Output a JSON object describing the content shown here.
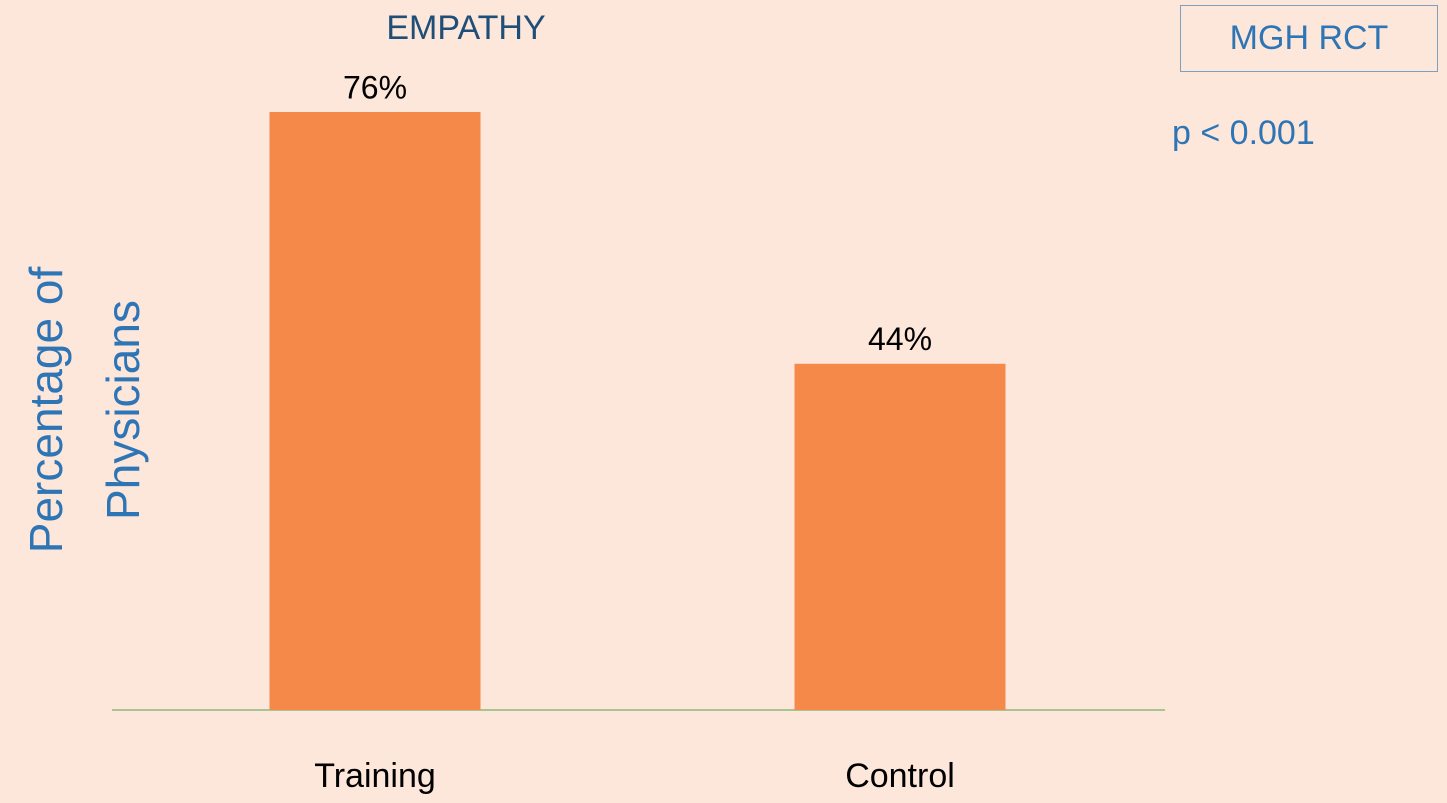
{
  "chart_data": {
    "type": "bar",
    "title": "EMPATHY",
    "ylabel": [
      "Percentage of",
      "Physicians"
    ],
    "annotations": [
      "MGH RCT",
      "p < 0.001"
    ],
    "categories": [
      "Training",
      "Control"
    ],
    "values": [
      76,
      44
    ],
    "value_labels": [
      "76%",
      "44%"
    ],
    "color": "#f5894a"
  }
}
